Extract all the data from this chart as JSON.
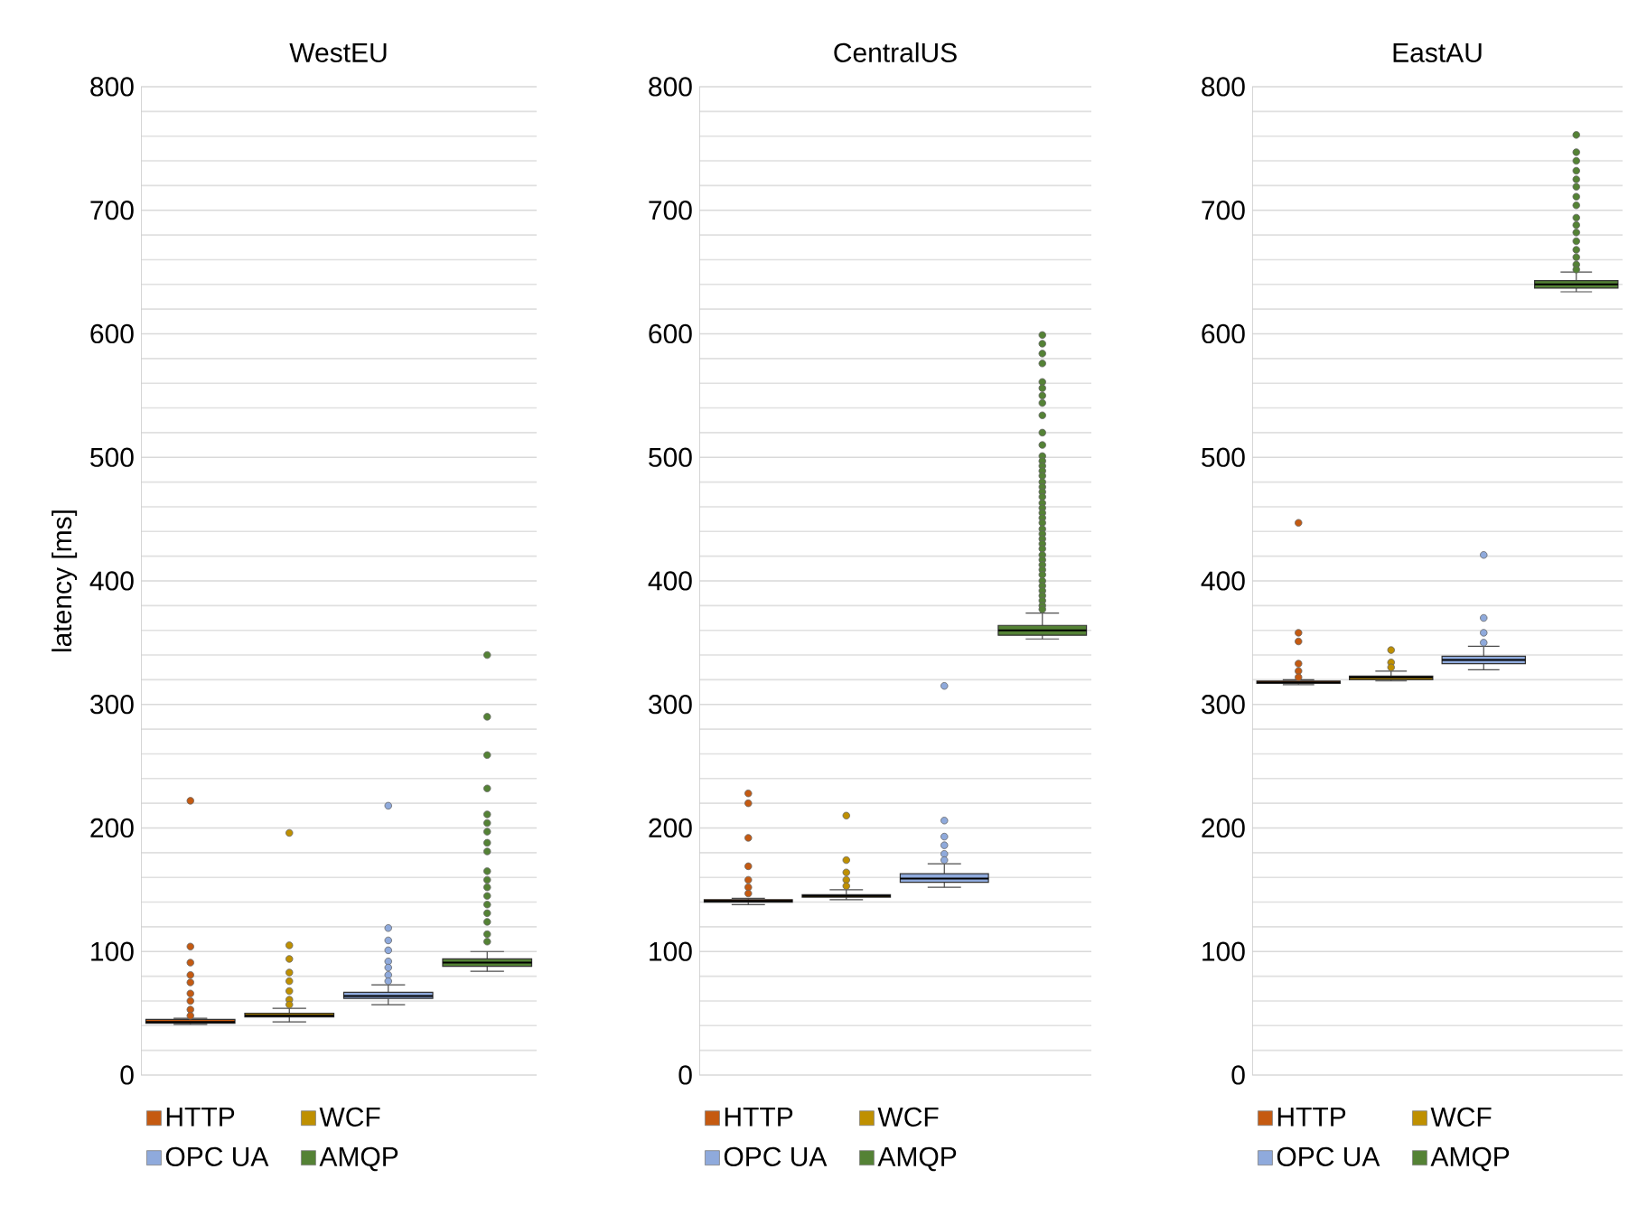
{
  "chart_data": [
    {
      "type": "box",
      "title": "WestEU",
      "ylabel": "latency [ms]",
      "categories": [
        null,
        null,
        null,
        null
      ],
      "ylim": [
        0,
        800
      ],
      "yticks": [
        0,
        100,
        200,
        300,
        400,
        500,
        600,
        700,
        800
      ],
      "grid": "y",
      "legend": "bottom",
      "tick_labels": "y",
      "marker": "circle",
      "series": [
        {
          "name": "HTTP",
          "color": "#c55a11",
          "boxes": [
            {
              "low": 41,
              "q1": 42,
              "median": 43,
              "q3": 45,
              "high": 46,
              "outliers": [
                222,
                104,
                91,
                81,
                75,
                66,
                60,
                53,
                48
              ]
            },
            null,
            null,
            null
          ]
        },
        {
          "name": "WCF",
          "color": "#bf9000",
          "boxes": [
            null,
            {
              "low": 43,
              "q1": 47,
              "median": 48,
              "q3": 50,
              "high": 54,
              "outliers": [
                196,
                105,
                94,
                83,
                76,
                68,
                61,
                57
              ]
            },
            null,
            null
          ]
        },
        {
          "name": "OPC UA",
          "color": "#8faadc",
          "boxes": [
            null,
            null,
            {
              "low": 57,
              "q1": 62,
              "median": 64,
              "q3": 67,
              "high": 73,
              "outliers": [
                218,
                119,
                109,
                101,
                92,
                87,
                81,
                76
              ]
            },
            null
          ]
        },
        {
          "name": "AMQP",
          "color": "#548235",
          "boxes": [
            null,
            null,
            null,
            {
              "low": 84,
              "q1": 88,
              "median": 91,
              "q3": 94,
              "high": 100,
              "outliers": [
                340,
                290,
                259,
                232,
                211,
                204,
                197,
                188,
                181,
                165,
                158,
                152,
                145,
                138,
                131,
                124,
                114,
                108
              ]
            }
          ]
        }
      ]
    },
    {
      "type": "box",
      "title": "CentralUS",
      "categories": [
        null,
        null,
        null,
        null
      ],
      "ylim": [
        0,
        800
      ],
      "yticks": [
        0,
        100,
        200,
        300,
        400,
        500,
        600,
        700,
        800
      ],
      "grid": "y",
      "legend": "bottom",
      "tick_labels": "y",
      "marker": "circle",
      "series": [
        {
          "name": "HTTP",
          "color": "#c55a11",
          "boxes": [
            {
              "low": 138,
              "q1": 140,
              "median": 141,
              "q3": 142,
              "high": 143,
              "outliers": [
                228,
                220,
                192,
                169,
                158,
                152,
                147
              ]
            },
            null,
            null,
            null
          ]
        },
        {
          "name": "WCF",
          "color": "#bf9000",
          "boxes": [
            null,
            {
              "low": 142,
              "q1": 144,
              "median": 145,
              "q3": 146,
              "high": 150,
              "outliers": [
                210,
                174,
                164,
                158,
                153
              ]
            },
            null,
            null
          ]
        },
        {
          "name": "OPC UA",
          "color": "#8faadc",
          "boxes": [
            null,
            null,
            {
              "low": 152,
              "q1": 156,
              "median": 159,
              "q3": 163,
              "high": 171,
              "outliers": [
                315,
                206,
                193,
                186,
                179,
                174
              ]
            },
            null
          ]
        },
        {
          "name": "AMQP",
          "color": "#548235",
          "boxes": [
            null,
            null,
            null,
            {
              "low": 353,
              "q1": 356,
              "median": 360,
              "q3": 364,
              "high": 374,
              "outliers": [
                599,
                592,
                584,
                576,
                561,
                556,
                550,
                544,
                534,
                520,
                510,
                501,
                497,
                493,
                489,
                485,
                480,
                476,
                472,
                468,
                463,
                459,
                455,
                451,
                447,
                442,
                438,
                434,
                430,
                426,
                421,
                417,
                413,
                409,
                405,
                400,
                396,
                392,
                388,
                384,
                380,
                377
              ]
            }
          ]
        }
      ]
    },
    {
      "type": "box",
      "title": "EastAU",
      "categories": [
        null,
        null,
        null,
        null
      ],
      "ylim": [
        0,
        800
      ],
      "yticks": [
        0,
        100,
        200,
        300,
        400,
        500,
        600,
        700,
        800
      ],
      "grid": "y",
      "legend": "bottom",
      "tick_labels": "y",
      "marker": "circle",
      "series": [
        {
          "name": "HTTP",
          "color": "#c55a11",
          "boxes": [
            {
              "low": 316,
              "q1": 317,
              "median": 318,
              "q3": 319,
              "high": 320,
              "outliers": [
                447,
                358,
                351,
                333,
                327,
                322
              ]
            },
            null,
            null,
            null
          ]
        },
        {
          "name": "WCF",
          "color": "#bf9000",
          "boxes": [
            null,
            {
              "low": 319,
              "q1": 320,
              "median": 322,
              "q3": 323,
              "high": 327,
              "outliers": [
                344,
                334,
                330
              ]
            },
            null,
            null
          ]
        },
        {
          "name": "OPC UA",
          "color": "#8faadc",
          "boxes": [
            null,
            null,
            {
              "low": 328,
              "q1": 333,
              "median": 336,
              "q3": 339,
              "high": 347,
              "outliers": [
                421,
                370,
                358,
                350
              ]
            },
            null
          ]
        },
        {
          "name": "AMQP",
          "color": "#548235",
          "boxes": [
            null,
            null,
            null,
            {
              "low": 634,
              "q1": 637,
              "median": 640,
              "q3": 643,
              "high": 650,
              "outliers": [
                761,
                747,
                740,
                732,
                725,
                719,
                711,
                704,
                694,
                688,
                682,
                675,
                668,
                662,
                656,
                652
              ]
            }
          ]
        }
      ]
    }
  ]
}
